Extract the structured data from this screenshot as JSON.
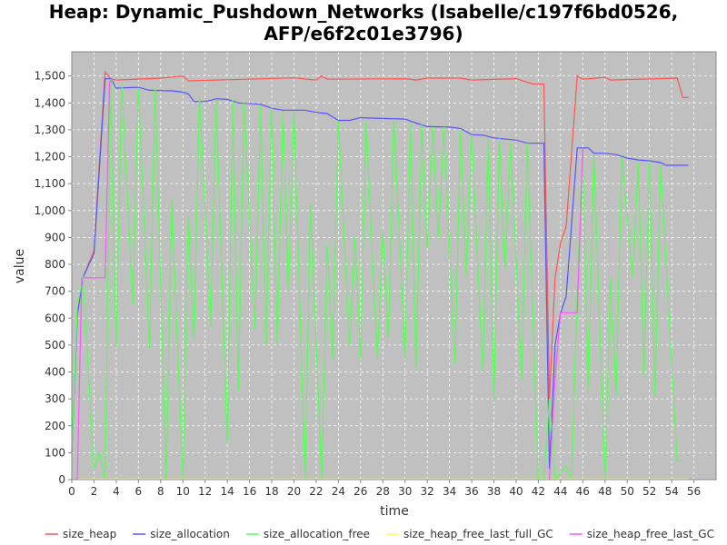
{
  "chart_data": {
    "type": "line",
    "title": [
      "Heap: Dynamic_Pushdown_Networks (Isabelle/c197f6bd0526,",
      "AFP/e6f2c01e3796)"
    ],
    "x_label": "time",
    "y_label": "value",
    "xlim": [
      0,
      58
    ],
    "ylim": [
      0,
      1590
    ],
    "xticks": [
      0,
      2,
      4,
      6,
      8,
      10,
      12,
      14,
      16,
      18,
      20,
      22,
      24,
      26,
      28,
      30,
      32,
      34,
      36,
      38,
      40,
      42,
      44,
      46,
      48,
      50,
      52,
      54,
      56
    ],
    "yticks": [
      0,
      100,
      200,
      300,
      400,
      500,
      600,
      700,
      800,
      900,
      {
        "value": 1000,
        "label": "1,000"
      },
      {
        "value": 1100,
        "label": "1,100"
      },
      {
        "value": 1200,
        "label": "1,200"
      },
      {
        "value": 1300,
        "label": "1,300"
      },
      {
        "value": 1400,
        "label": "1,400"
      },
      {
        "value": 1500,
        "label": "1,500"
      }
    ],
    "grid": true,
    "legend": "bottom",
    "series": [
      {
        "name": "size_heap",
        "color": "#ff5555",
        "x": [
          0,
          0.5,
          1,
          2,
          3,
          3.5,
          4,
          8,
          10,
          10.5,
          20,
          22,
          22.5,
          23,
          30,
          31,
          32,
          35,
          36,
          40,
          41.5,
          42.5,
          43,
          43.5,
          44,
          44.5,
          45.5,
          46,
          48,
          48.5,
          54.5,
          55,
          55.5
        ],
        "values": [
          100,
          620,
          750,
          850,
          1515,
          1490,
          1485,
          1492,
          1500,
          1482,
          1493,
          1485,
          1500,
          1488,
          1490,
          1485,
          1492,
          1492,
          1485,
          1490,
          1470,
          1470,
          300,
          750,
          880,
          940,
          1500,
          1488,
          1495,
          1485,
          1492,
          1420,
          1420
        ]
      },
      {
        "name": "size_allocation",
        "color": "#5555ff",
        "x": [
          0,
          0.5,
          1,
          2,
          3,
          3.5,
          4,
          6,
          7,
          9,
          10,
          10.5,
          11,
          12,
          13,
          14,
          15,
          17,
          18,
          19,
          21,
          22,
          23,
          24,
          25,
          26,
          30,
          31,
          32,
          34,
          35,
          36,
          37,
          38,
          40,
          41,
          42.5,
          43,
          43.5,
          44,
          44.5,
          45.5,
          46.5,
          47,
          48,
          49,
          50,
          51,
          52,
          53,
          53.5,
          55.5
        ],
        "values": [
          100,
          610,
          750,
          840,
          1490,
          1490,
          1455,
          1458,
          1447,
          1445,
          1440,
          1433,
          1405,
          1405,
          1415,
          1413,
          1400,
          1395,
          1380,
          1373,
          1373,
          1365,
          1360,
          1335,
          1335,
          1345,
          1340,
          1325,
          1312,
          1310,
          1305,
          1282,
          1280,
          1270,
          1262,
          1250,
          1250,
          40,
          500,
          620,
          680,
          1233,
          1233,
          1213,
          1213,
          1208,
          1195,
          1188,
          1185,
          1178,
          1168,
          1168
        ]
      },
      {
        "name": "size_allocation_free",
        "color": "#55ff55",
        "x": [
          0,
          0.5,
          1,
          2,
          2.5,
          3,
          3.5,
          4,
          4.5,
          5.5,
          6,
          7,
          7.5,
          8.5,
          9,
          10,
          10.5,
          11,
          11.5,
          12.5,
          13,
          14,
          14.5,
          15,
          15.5,
          16.5,
          17,
          17.5,
          18,
          18.5,
          19,
          19.5,
          20,
          21,
          21.5,
          22.5,
          23,
          23.5,
          24,
          25,
          25.5,
          26,
          26.5,
          27.5,
          28,
          28.5,
          29,
          30,
          30.5,
          31,
          31.5,
          32,
          32.5,
          33,
          33.5,
          34.5,
          35,
          35.5,
          36,
          37,
          37.5,
          38,
          38.5,
          39,
          39.5,
          40.5,
          41,
          42,
          42.5,
          43,
          43.5,
          44.5,
          45,
          45.5,
          46,
          46.5,
          47,
          48,
          48.5,
          49,
          49.5,
          50.5,
          51,
          51.5,
          52,
          52.5,
          53,
          54.5,
          55
        ],
        "values": [
          100,
          640,
          760,
          40,
          100,
          0,
          1490,
          490,
          1470,
          650,
          1455,
          490,
          1450,
          0,
          1040,
          0,
          980,
          520,
          1420,
          570,
          1410,
          140,
          1410,
          330,
          1400,
          560,
          1390,
          500,
          1380,
          500,
          1370,
          700,
          1370,
          0,
          1030,
          0,
          870,
          450,
          1330,
          500,
          900,
          450,
          1330,
          450,
          920,
          520,
          1340,
          450,
          1330,
          410,
          1320,
          860,
          1310,
          900,
          1310,
          430,
          1300,
          760,
          1280,
          400,
          1270,
          290,
          1270,
          780,
          1260,
          370,
          1250,
          0,
          0,
          300,
          0,
          50,
          0,
          700,
          1230,
          320,
          1210,
          0,
          750,
          310,
          1200,
          750,
          1180,
          390,
          1180,
          310,
          1170,
          70,
          70
        ]
      },
      {
        "name": "size_heap_free_last_full_GC",
        "color": "#ffff55",
        "x": [
          0.5,
          55.5
        ],
        "values": [
          2,
          2
        ]
      },
      {
        "name": "size_heap_free_last_GC",
        "color": "#ff55ff",
        "x": [
          0.5,
          0.9,
          3,
          3.4,
          3.8,
          43,
          43,
          43.5,
          44,
          45.5,
          46
        ],
        "values": [
          0,
          750,
          750,
          1480,
          1480,
          null,
          0,
          380,
          620,
          620,
          1230
        ]
      }
    ]
  }
}
